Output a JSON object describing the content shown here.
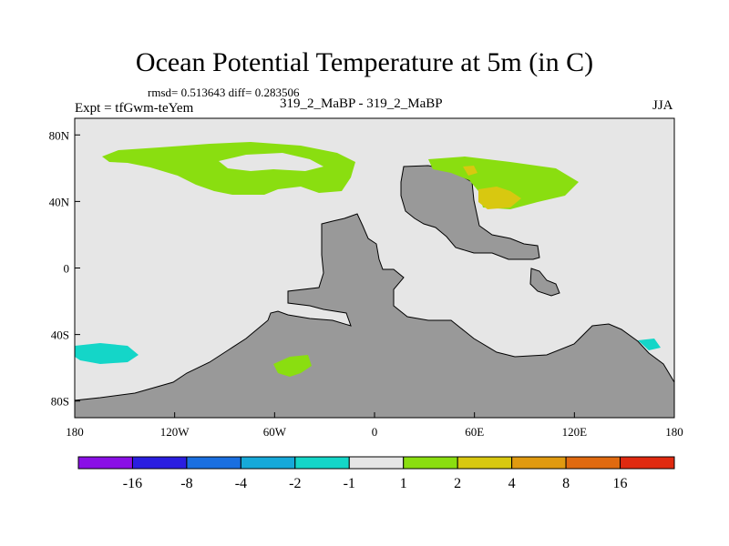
{
  "chart_data": {
    "type": "map",
    "title": "Ocean Potential Temperature at 5m (in C)",
    "stats": "rmsd= 0.513643  diff= 0.283506",
    "left_label": "Expt = tfGwm-teYem",
    "center_label": "319_2_MaBP - 319_2_MaBP",
    "right_label": "JJA",
    "x_ticks": [
      "180",
      "120W",
      "60W",
      "0",
      "60E",
      "120E",
      "180"
    ],
    "y_ticks": [
      "80N",
      "40N",
      "0",
      "40S",
      "80S"
    ],
    "lon_range": [
      -180,
      180
    ],
    "lat_range": [
      -90,
      90
    ],
    "colorbar": {
      "labels": [
        "-16",
        "-8",
        "-4",
        "-2",
        "-1",
        "1",
        "2",
        "4",
        "8",
        "16"
      ],
      "colors": [
        "#8a0fe6",
        "#2a1ee0",
        "#1a6fe0",
        "#16a9d9",
        "#14d6c8",
        "#e6e6e6",
        "#8ade10",
        "#d8c810",
        "#e09a10",
        "#e06a10",
        "#e02a10"
      ]
    },
    "colors": {
      "background_field": "#e6e6e6",
      "land": "#999999",
      "positive_small": "#8ade10",
      "positive_medium": "#d8c810",
      "positive_large": "#e09a10",
      "negative_small": "#14d6c8"
    }
  }
}
